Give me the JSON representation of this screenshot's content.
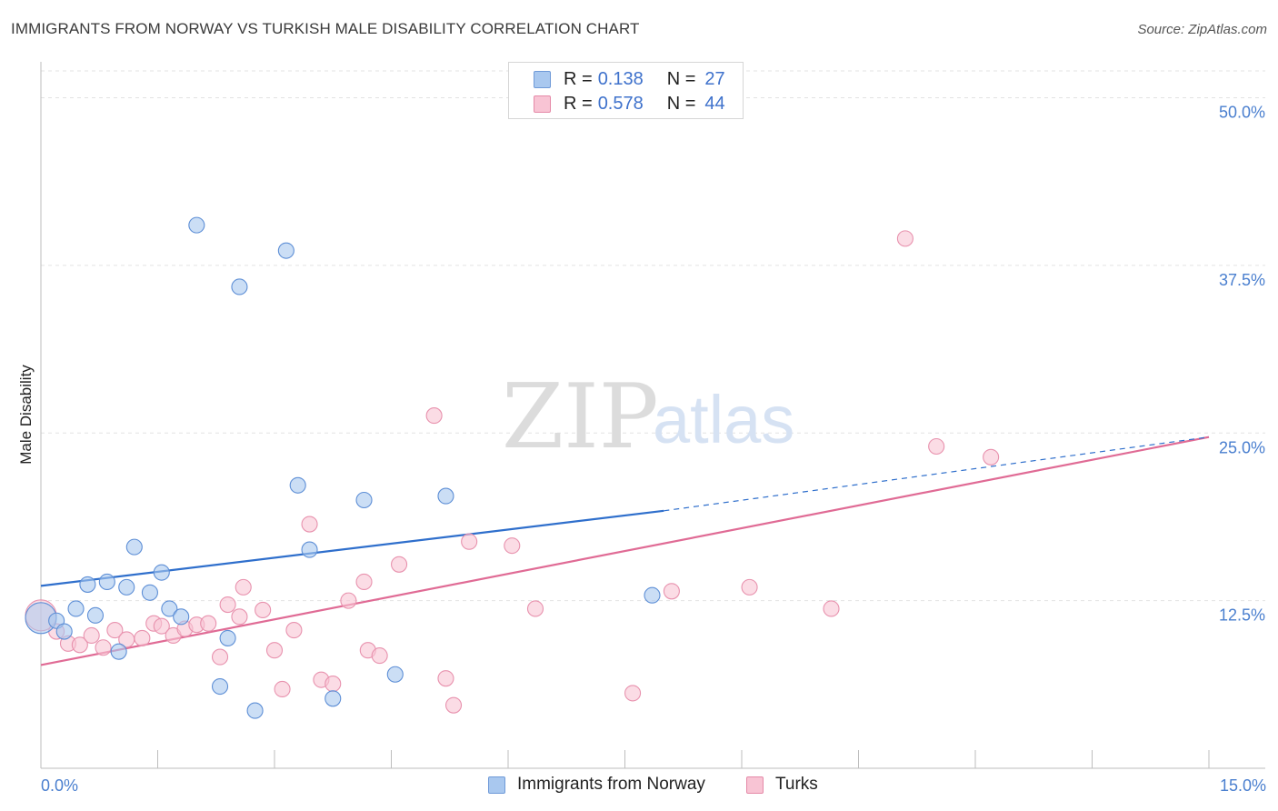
{
  "header": {
    "title": "IMMIGRANTS FROM NORWAY VS TURKISH MALE DISABILITY CORRELATION CHART",
    "source": "Source: ZipAtlas.com"
  },
  "watermark": {
    "zip": "ZIP",
    "atlas": "atlas"
  },
  "legend": {
    "rows": [
      {
        "r_label": "R =",
        "r_value": "0.138",
        "n_label": "N =",
        "n_value": "27",
        "color": "#a9c8ef",
        "border": "#6f9ad8"
      },
      {
        "r_label": "R =",
        "r_value": "0.578",
        "n_label": "N =",
        "n_value": "44",
        "color": "#f8c4d4",
        "border": "#e58aa8"
      }
    ]
  },
  "bottom_legend": {
    "items": [
      {
        "label": "Immigrants from Norway",
        "color": "#a9c8ef",
        "border": "#6f9ad8"
      },
      {
        "label": "Turks",
        "color": "#f8c4d4",
        "border": "#e58aa8"
      }
    ]
  },
  "chart_data": {
    "type": "scatter",
    "title": "IMMIGRANTS FROM NORWAY VS TURKISH MALE DISABILITY CORRELATION CHART",
    "xlabel": "",
    "ylabel": "Male Disability",
    "xlim": [
      0,
      15
    ],
    "ylim": [
      0,
      52
    ],
    "x_tick_labels": [
      "0.0%",
      "15.0%"
    ],
    "y_ticks": [
      12.5,
      25.0,
      37.5,
      50.0
    ],
    "y_tick_labels": [
      "12.5%",
      "25.0%",
      "37.5%",
      "50.0%"
    ],
    "grid": true,
    "series": [
      {
        "name": "Immigrants from Norway",
        "color": "#a9c8ef",
        "stroke": "#5e8fd6",
        "line_color": "#2f6fcc",
        "points": [
          [
            0.0,
            11.2
          ],
          [
            0.2,
            11.0
          ],
          [
            0.3,
            10.2
          ],
          [
            0.45,
            11.9
          ],
          [
            0.6,
            13.7
          ],
          [
            0.7,
            11.4
          ],
          [
            0.85,
            13.9
          ],
          [
            1.0,
            8.7
          ],
          [
            1.1,
            13.5
          ],
          [
            1.2,
            16.5
          ],
          [
            1.4,
            13.1
          ],
          [
            1.55,
            14.6
          ],
          [
            1.65,
            11.9
          ],
          [
            1.8,
            11.3
          ],
          [
            2.0,
            40.5
          ],
          [
            2.3,
            6.1
          ],
          [
            2.4,
            9.7
          ],
          [
            2.55,
            35.9
          ],
          [
            2.75,
            4.3
          ],
          [
            3.15,
            38.6
          ],
          [
            3.3,
            21.1
          ],
          [
            3.45,
            16.3
          ],
          [
            3.75,
            5.2
          ],
          [
            4.15,
            20.0
          ],
          [
            4.55,
            7.0
          ],
          [
            5.2,
            20.3
          ],
          [
            7.85,
            12.9
          ]
        ],
        "trend": {
          "x0": 0,
          "y0": 13.6,
          "x1": 8.0,
          "y1": 19.2,
          "dash_to_x": 15,
          "dash_to_y": 24.7
        }
      },
      {
        "name": "Turks",
        "color": "#f8c4d4",
        "stroke": "#e892ae",
        "line_color": "#e06b95",
        "points": [
          [
            0.0,
            11.4
          ],
          [
            0.2,
            10.2
          ],
          [
            0.35,
            9.3
          ],
          [
            0.5,
            9.2
          ],
          [
            0.65,
            9.9
          ],
          [
            0.8,
            9.0
          ],
          [
            0.95,
            10.3
          ],
          [
            1.1,
            9.6
          ],
          [
            1.3,
            9.7
          ],
          [
            1.45,
            10.8
          ],
          [
            1.55,
            10.6
          ],
          [
            1.7,
            9.9
          ],
          [
            1.85,
            10.4
          ],
          [
            2.0,
            10.7
          ],
          [
            2.15,
            10.8
          ],
          [
            2.3,
            8.3
          ],
          [
            2.4,
            12.2
          ],
          [
            2.55,
            11.3
          ],
          [
            2.6,
            13.5
          ],
          [
            2.85,
            11.8
          ],
          [
            3.0,
            8.8
          ],
          [
            3.1,
            5.9
          ],
          [
            3.25,
            10.3
          ],
          [
            3.45,
            18.2
          ],
          [
            3.6,
            6.6
          ],
          [
            3.75,
            6.3
          ],
          [
            3.95,
            12.5
          ],
          [
            4.15,
            13.9
          ],
          [
            4.2,
            8.8
          ],
          [
            4.35,
            8.4
          ],
          [
            4.6,
            15.2
          ],
          [
            5.05,
            26.3
          ],
          [
            5.2,
            6.7
          ],
          [
            5.3,
            4.7
          ],
          [
            5.5,
            16.9
          ],
          [
            6.05,
            16.6
          ],
          [
            6.35,
            11.9
          ],
          [
            7.6,
            5.6
          ],
          [
            8.1,
            13.2
          ],
          [
            9.1,
            13.5
          ],
          [
            10.15,
            11.9
          ],
          [
            11.1,
            39.5
          ],
          [
            11.5,
            24.0
          ],
          [
            12.2,
            23.2
          ]
        ],
        "trend": {
          "x0": 0,
          "y0": 7.7,
          "x1": 15,
          "y1": 24.7
        }
      }
    ]
  }
}
